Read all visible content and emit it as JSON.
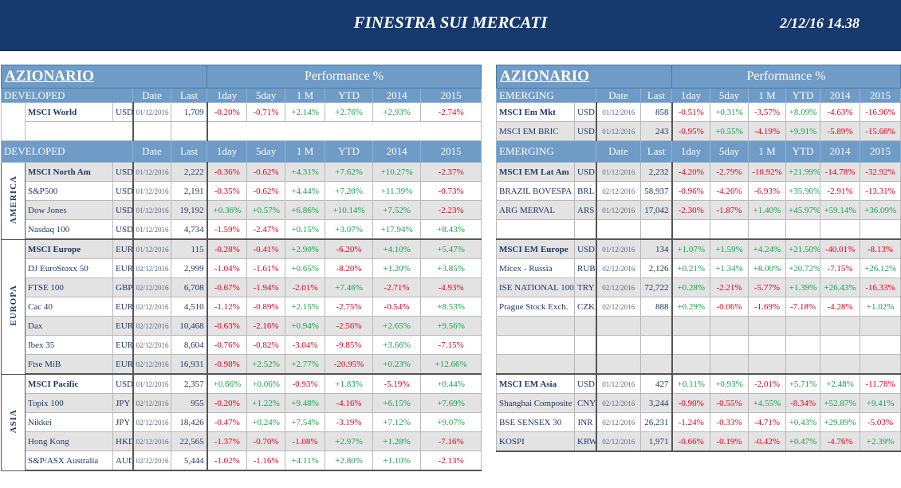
{
  "header": {
    "title": "FINESTRA SUI MERCATI",
    "timestamp": "2/12/16 14.38"
  },
  "colors": {
    "topbar": "#173a6e",
    "header_blue": "#6f9bc7",
    "positive": "#19a34a",
    "negative": "#e3001b",
    "row_shade": "#e3e3e3"
  },
  "columns": [
    "Date",
    "Last",
    "1day",
    "5day",
    "1 M",
    "YTD",
    "2014",
    "2015"
  ],
  "left": {
    "title": "AZIONARIO",
    "perf_title": "Performance  %",
    "top": {
      "label": "DEVELOPED",
      "rows": [
        {
          "name": "MSCI World",
          "ccy": "USD",
          "date": "01/12/2016",
          "last": "1,709",
          "perf": [
            "-0.20%",
            "-0.71%",
            "+2.14%",
            "+2.76%",
            "+2.93%",
            "-2.74%"
          ],
          "bold": true,
          "shade": false
        }
      ]
    },
    "main": {
      "label": "DEVELOPED",
      "groups": [
        {
          "region": "AMERICA",
          "rows": [
            {
              "name": "MSCI North Am",
              "ccy": "USD",
              "date": "01/12/2016",
              "last": "2,222",
              "perf": [
                "-0.36%",
                "-0.62%",
                "+4.31%",
                "+7.62%",
                "+10.27%",
                "-2.37%"
              ],
              "bold": true,
              "shade": true
            },
            {
              "name": "S&P500",
              "ccy": "USD",
              "date": "01/12/2016",
              "last": "2,191",
              "perf": [
                "-0.35%",
                "-0.62%",
                "+4.44%",
                "+7.20%",
                "+11.39%",
                "-0.73%"
              ],
              "bold": false,
              "shade": false
            },
            {
              "name": "Dow Jones",
              "ccy": "USD",
              "date": "01/12/2016",
              "last": "19,192",
              "perf": [
                "+0.36%",
                "+0.57%",
                "+6.86%",
                "+10.14%",
                "+7.52%",
                "-2.23%"
              ],
              "bold": false,
              "shade": true
            },
            {
              "name": "Nasdaq 100",
              "ccy": "USD",
              "date": "01/12/2016",
              "last": "4,734",
              "perf": [
                "-1.59%",
                "-2.47%",
                "+0.15%",
                "+3.07%",
                "+17.94%",
                "+8.43%"
              ],
              "bold": false,
              "shade": false
            }
          ]
        },
        {
          "region": "EUROPA",
          "rows": [
            {
              "name": "MSCI Europe",
              "ccy": "EUR",
              "date": "01/12/2016",
              "last": "115",
              "perf": [
                "-0.28%",
                "-0.41%",
                "+2.90%",
                "-6.20%",
                "+4.10%",
                "+5.47%"
              ],
              "bold": true,
              "shade": true
            },
            {
              "name": "DJ EuroStoxx 50",
              "ccy": "EUR",
              "date": "02/12/2016",
              "last": "2,999",
              "perf": [
                "-1.04%",
                "-1.61%",
                "+0.65%",
                "-8.20%",
                "+1.20%",
                "+3.85%"
              ],
              "bold": false,
              "shade": false
            },
            {
              "name": "FTSE 100",
              "ccy": "GBP",
              "date": "02/12/2016",
              "last": "6,708",
              "perf": [
                "-0.67%",
                "-1.94%",
                "-2.01%",
                "+7.46%",
                "-2.71%",
                "-4.93%"
              ],
              "bold": false,
              "shade": true
            },
            {
              "name": "Cac 40",
              "ccy": "EUR",
              "date": "02/12/2016",
              "last": "4,510",
              "perf": [
                "-1.12%",
                "-0.89%",
                "+2.15%",
                "-2.75%",
                "-0.54%",
                "+8.53%"
              ],
              "bold": false,
              "shade": false
            },
            {
              "name": "Dax",
              "ccy": "EUR",
              "date": "02/12/2016",
              "last": "10,468",
              "perf": [
                "-0.63%",
                "-2.16%",
                "+0.94%",
                "-2.56%",
                "+2.65%",
                "+9.56%"
              ],
              "bold": false,
              "shade": true
            },
            {
              "name": "Ibex 35",
              "ccy": "EUR",
              "date": "02/12/2016",
              "last": "8,604",
              "perf": [
                "-0.76%",
                "-0.82%",
                "-3.04%",
                "-9.85%",
                "+3.66%",
                "-7.15%"
              ],
              "bold": false,
              "shade": false
            },
            {
              "name": "Ftse MiB",
              "ccy": "EUR",
              "date": "02/12/2016",
              "last": "16,931",
              "perf": [
                "-0.98%",
                "+2.52%",
                "+2.77%",
                "-20.95%",
                "+0.23%",
                "+12.66%"
              ],
              "bold": false,
              "shade": true
            }
          ]
        },
        {
          "region": "ASIA",
          "rows": [
            {
              "name": "MSCI Pacific",
              "ccy": "USD",
              "date": "01/12/2016",
              "last": "2,357",
              "perf": [
                "+0.66%",
                "+0.06%",
                "-0.93%",
                "+1.83%",
                "-5.19%",
                "+0.44%"
              ],
              "bold": true,
              "shade": false
            },
            {
              "name": "Topix 100",
              "ccy": "JPY",
              "date": "02/12/2016",
              "last": "955",
              "perf": [
                "-0.20%",
                "+1.22%",
                "+9.48%",
                "-4.16%",
                "+6.15%",
                "+7.69%"
              ],
              "bold": false,
              "shade": true
            },
            {
              "name": "Nikkei",
              "ccy": "JPY",
              "date": "02/12/2016",
              "last": "18,426",
              "perf": [
                "-0.47%",
                "+0.24%",
                "+7.54%",
                "-3.19%",
                "+7.12%",
                "+9.07%"
              ],
              "bold": false,
              "shade": false
            },
            {
              "name": "Hong Kong",
              "ccy": "HKD",
              "date": "02/12/2016",
              "last": "22,565",
              "perf": [
                "-1.37%",
                "-0.70%",
                "-1.08%",
                "+2.97%",
                "+1.28%",
                "-7.16%"
              ],
              "bold": false,
              "shade": true
            },
            {
              "name": "S&P/ASX Australia",
              "ccy": "AUD",
              "date": "02/12/2016",
              "last": "5,444",
              "perf": [
                "-1.02%",
                "-1.16%",
                "+4.11%",
                "+2.80%",
                "+1.10%",
                "-2.13%"
              ],
              "bold": false,
              "shade": false
            }
          ]
        }
      ]
    }
  },
  "right": {
    "title": "AZIONARIO",
    "perf_title": "Performance  %",
    "top": {
      "label": "EMERGING",
      "rows": [
        {
          "name": "MSCI Em Mkt",
          "ccy": "USD",
          "date": "01/12/2016",
          "last": "858",
          "perf": [
            "-0.51%",
            "+0.31%",
            "-3.57%",
            "+8.09%",
            "-4.63%",
            "-16.96%"
          ],
          "bold": true,
          "shade": false
        },
        {
          "name": "MSCI EM BRIC",
          "ccy": "USD",
          "date": "01/12/2016",
          "last": "243",
          "perf": [
            "-0.95%",
            "+0.55%",
            "-4.19%",
            "+9.91%",
            "-5.89%",
            "-15.68%"
          ],
          "bold": false,
          "shade": true
        }
      ]
    },
    "main": {
      "label": "EMERGING",
      "groups": [
        {
          "rows": [
            {
              "name": "MSCI EM Lat Am",
              "ccy": "USD",
              "date": "01/12/2016",
              "last": "2,232",
              "perf": [
                "-4.20%",
                "-2.79%",
                "-10.92%",
                "+21.99%",
                "-14.78%",
                "-32.92%"
              ],
              "bold": true,
              "shade": true
            },
            {
              "name": "BRAZIL BOVESPA",
              "ccy": "BRL",
              "date": "02/12/2016",
              "last": "58,937",
              "perf": [
                "-0.96%",
                "-4.26%",
                "-6.93%",
                "+35.96%",
                "-2.91%",
                "-13.31%"
              ],
              "bold": false,
              "shade": false
            },
            {
              "name": "ARG MERVAL",
              "ccy": "ARS",
              "date": "01/12/2016",
              "last": "17,042",
              "perf": [
                "-2.30%",
                "-1.87%",
                "+1.40%",
                "+45.97%",
                "+59.14%",
                "+36.09%"
              ],
              "bold": false,
              "shade": true
            },
            {
              "blank": true,
              "shade": false
            }
          ]
        },
        {
          "rows": [
            {
              "name": "MSCI EM Europe",
              "ccy": "USD",
              "date": "01/12/2016",
              "last": "134",
              "perf": [
                "+1.07%",
                "+1.59%",
                "+4.24%",
                "+21.50%",
                "-40.01%",
                "-8.13%"
              ],
              "bold": true,
              "shade": true
            },
            {
              "name": "Micex - Russia",
              "ccy": "RUB",
              "date": "02/12/2016",
              "last": "2,126",
              "perf": [
                "+0.21%",
                "+1.34%",
                "+8.00%",
                "+20.72%",
                "-7.15%",
                "+26.12%"
              ],
              "bold": false,
              "shade": false
            },
            {
              "name": "ISE NATIONAL 100",
              "ccy": "TRY",
              "date": "02/12/2016",
              "last": "72,722",
              "perf": [
                "+0.28%",
                "-2.21%",
                "-5.77%",
                "+1.39%",
                "+26.43%",
                "-16.33%"
              ],
              "bold": false,
              "shade": true
            },
            {
              "name": "Prague Stock Exch.",
              "ccy": "CZK",
              "date": "02/12/2016",
              "last": "888",
              "perf": [
                "+0.29%",
                "-0.06%",
                "-1.69%",
                "-7.18%",
                "-4.28%",
                "+1.02%"
              ],
              "bold": false,
              "shade": false
            },
            {
              "blank": true,
              "shade": true
            },
            {
              "blank": true,
              "shade": false
            },
            {
              "blank": true,
              "shade": true
            }
          ]
        },
        {
          "rows": [
            {
              "name": "MSCI EM Asia",
              "ccy": "USD",
              "date": "01/12/2016",
              "last": "427",
              "perf": [
                "+0.11%",
                "+0.93%",
                "-2.01%",
                "+5.71%",
                "+2.48%",
                "-11.78%"
              ],
              "bold": true,
              "shade": false
            },
            {
              "name": "Shanghai Composite",
              "ccy": "CNY",
              "date": "02/12/2016",
              "last": "3,244",
              "perf": [
                "-0.90%",
                "-0.55%",
                "+4.55%",
                "-8.34%",
                "+52.87%",
                "+9.41%"
              ],
              "bold": false,
              "shade": true
            },
            {
              "name": "BSE SENSEX 30",
              "ccy": "INR",
              "date": "02/12/2016",
              "last": "26,231",
              "perf": [
                "-1.24%",
                "-0.33%",
                "-4.71%",
                "+0.43%",
                "+29.89%",
                "-5.03%"
              ],
              "bold": false,
              "shade": false
            },
            {
              "name": "KOSPI",
              "ccy": "KRW",
              "date": "02/12/2016",
              "last": "1,971",
              "perf": [
                "-0.66%",
                "-0.19%",
                "-0.42%",
                "+0.47%",
                "-4.76%",
                "+2.39%"
              ],
              "bold": false,
              "shade": true
            }
          ]
        }
      ]
    }
  }
}
